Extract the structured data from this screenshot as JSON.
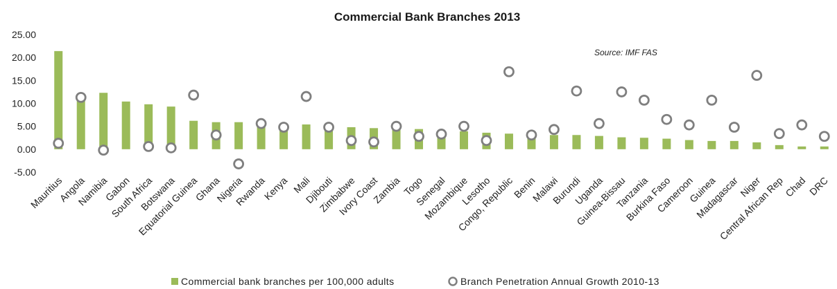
{
  "chart_data": {
    "type": "bar",
    "title": "Commercial Bank Branches 2013",
    "source": "Source: IMF FAS",
    "xlabel": "",
    "ylabel": "",
    "ylim": [
      -5,
      25
    ],
    "yticks": [
      "25.00",
      "20.00",
      "15.00",
      "10.00",
      "5.00",
      "0.00",
      "-5.00"
    ],
    "ytick_values": [
      25,
      20,
      15,
      10,
      5,
      0,
      -5
    ],
    "categories": [
      "Mauritius",
      "Angola",
      "Namibia",
      "Gabon",
      "South Africa",
      "Botswana",
      "Equatorial Guinea",
      "Ghana",
      "Nigeria",
      "Rwanda",
      "Kenya",
      "Mali",
      "Djibouti",
      "Zimbabwe",
      "Ivory Coast",
      "Zambia",
      "Togo",
      "Senegal",
      "Mozambique",
      "Lesotho",
      "Congo, Republic",
      "Benin",
      "Malawi",
      "Burundi",
      "Uganda",
      "Guinea-Bissau",
      "Tanzania",
      "Burkina Faso",
      "Cameroon",
      "Guinea",
      "Madagascar",
      "Niger",
      "Central African Rep",
      "Chad",
      "DRC"
    ],
    "series": [
      {
        "name": "Commercial bank branches per 100,000 adults",
        "kind": "bar",
        "color": "#9bbb59",
        "values": [
          21.4,
          11.2,
          12.3,
          10.4,
          9.8,
          9.3,
          6.2,
          5.9,
          5.9,
          5.3,
          5.0,
          5.4,
          4.8,
          4.8,
          4.6,
          4.4,
          4.4,
          3.9,
          3.9,
          3.6,
          3.4,
          3.1,
          3.1,
          3.1,
          2.9,
          2.6,
          2.5,
          2.3,
          2.0,
          1.8,
          1.8,
          1.5,
          0.9,
          0.6,
          0.6
        ]
      },
      {
        "name": "Branch Penetration Annual Growth 2010-13",
        "kind": "marker",
        "color": "#7f7f7f",
        "values": [
          1.3,
          11.3,
          -0.2,
          null,
          0.6,
          0.3,
          11.8,
          3.1,
          -3.2,
          5.6,
          4.8,
          11.5,
          4.8,
          1.9,
          1.6,
          5.0,
          2.8,
          3.3,
          5.0,
          1.9,
          16.9,
          3.1,
          4.3,
          12.7,
          5.6,
          12.5,
          10.7,
          6.5,
          5.3,
          10.7,
          4.8,
          16.1,
          3.4,
          5.3,
          2.8
        ]
      }
    ],
    "legend_position": "bottom",
    "grid": false
  }
}
